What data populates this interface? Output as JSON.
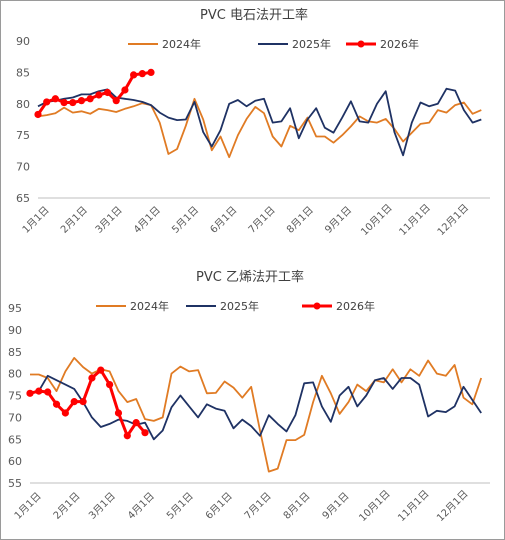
{
  "colors": {
    "y2024": "#e07b24",
    "y2025": "#1f3264",
    "y2026": "#ff0000",
    "axis": "#bfbfbf"
  },
  "chart_data": [
    {
      "type": "line",
      "title": "PVC 电石法开工率",
      "ylim": [
        65,
        90
      ],
      "yticks": [
        "65",
        "70",
        "75",
        "80",
        "85",
        "90"
      ],
      "xlim": [
        1,
        53
      ],
      "x_tick_labels": [
        "1月1日",
        "2月1日",
        "3月1日",
        "4月1日",
        "5月1日",
        "6月1日",
        "7月1日",
        "8月1日",
        "9月1日",
        "10月1日",
        "11月1日",
        "12月1日"
      ],
      "legend": [
        "2024年",
        "2025年",
        "2026年"
      ],
      "series": [
        {
          "name": "2024年",
          "x": [
            1,
            2,
            3,
            4,
            5,
            6,
            7,
            8,
            9,
            10,
            11,
            12,
            13,
            14,
            15,
            16,
            17,
            18,
            19,
            20,
            21,
            22,
            23,
            24,
            25,
            26,
            27,
            28,
            29,
            30,
            31,
            32,
            33,
            34,
            35,
            36,
            37,
            38,
            39,
            40,
            41,
            42,
            43,
            44,
            45,
            46,
            47,
            48,
            49,
            50,
            51,
            52
          ],
          "values": [
            78.0,
            78.2,
            78.5,
            79.4,
            78.6,
            78.8,
            78.4,
            79.2,
            79.0,
            78.7,
            79.2,
            79.6,
            80.1,
            79.8,
            77.0,
            72.0,
            72.8,
            76.5,
            80.8,
            77.5,
            72.6,
            74.8,
            71.5,
            75.0,
            77.6,
            79.5,
            78.5,
            74.8,
            73.2,
            76.5,
            75.8,
            77.8,
            74.8,
            74.8,
            73.8,
            75.0,
            76.4,
            78.0,
            77.2,
            77.0,
            77.6,
            76.0,
            74.0,
            75.4,
            76.8,
            77.0,
            79.0,
            78.6,
            79.8,
            80.2,
            78.4,
            79.0
          ]
        },
        {
          "name": "2025年",
          "x": [
            1,
            2,
            3,
            4,
            5,
            6,
            7,
            8,
            9,
            10,
            11,
            12,
            13,
            14,
            15,
            16,
            17,
            18,
            19,
            20,
            21,
            22,
            23,
            24,
            25,
            26,
            27,
            28,
            29,
            30,
            31,
            32,
            33,
            34,
            35,
            36,
            37,
            38,
            39,
            40,
            41,
            42,
            43,
            44,
            45,
            46,
            47,
            48,
            49,
            50,
            51,
            52
          ],
          "values": [
            79.6,
            80.3,
            80.5,
            80.8,
            81.0,
            81.5,
            81.5,
            82.0,
            82.3,
            81.0,
            80.8,
            80.6,
            80.3,
            79.8,
            78.6,
            77.8,
            77.4,
            77.5,
            80.3,
            75.5,
            73.2,
            75.8,
            80.0,
            80.6,
            79.6,
            80.5,
            80.8,
            77.0,
            77.2,
            79.3,
            74.5,
            77.5,
            79.3,
            76.2,
            75.4,
            77.8,
            80.4,
            77.2,
            77.0,
            80.0,
            82.0,
            75.5,
            71.8,
            77.0,
            80.2,
            79.6,
            80.0,
            82.4,
            82.1,
            79.0,
            77.0,
            77.5
          ]
        },
        {
          "name": "2026年",
          "x": [
            1,
            2,
            3,
            4,
            5,
            6,
            7,
            8,
            9,
            10,
            11,
            12,
            13,
            14
          ],
          "values": [
            78.3,
            80.3,
            80.8,
            80.2,
            80.2,
            80.5,
            80.8,
            81.4,
            81.8,
            80.5,
            82.2,
            84.6,
            84.8,
            85.0
          ]
        }
      ]
    },
    {
      "type": "line",
      "title": "PVC 乙烯法开工率",
      "ylim": [
        55,
        95
      ],
      "yticks": [
        "55",
        "60",
        "65",
        "70",
        "75",
        "80",
        "85",
        "90",
        "95"
      ],
      "xlim": [
        1,
        53
      ],
      "x_tick_labels": [
        "1月1日",
        "2月1日",
        "3月1日",
        "4月1日",
        "5月1日",
        "6月1日",
        "7月1日",
        "8月1日",
        "9月1日",
        "10月1日",
        "11月1日",
        "12月1日"
      ],
      "legend": [
        "2024年",
        "2025年",
        "2026年"
      ],
      "series": [
        {
          "name": "2024年",
          "x": [
            1,
            2,
            3,
            4,
            5,
            6,
            7,
            8,
            9,
            10,
            11,
            12,
            13,
            14,
            15,
            16,
            17,
            18,
            19,
            20,
            21,
            22,
            23,
            24,
            25,
            26,
            27,
            28,
            29,
            30,
            31,
            32,
            33,
            34,
            35,
            36,
            37,
            38,
            39,
            40,
            41,
            42,
            43,
            44,
            45,
            46,
            47,
            48,
            49,
            50,
            51,
            52
          ],
          "values": [
            79.8,
            79.8,
            79.0,
            76.0,
            80.5,
            83.6,
            81.5,
            80.0,
            81.0,
            80.5,
            76.0,
            73.5,
            74.2,
            69.6,
            69.2,
            70.0,
            80.0,
            81.6,
            80.5,
            80.8,
            75.5,
            75.6,
            78.2,
            76.8,
            74.5,
            77.0,
            67.0,
            57.6,
            58.3,
            64.8,
            64.8,
            66.0,
            73.5,
            79.5,
            75.5,
            70.8,
            73.5,
            77.5,
            76.0,
            78.5,
            78.0,
            81.0,
            78.0,
            81.0,
            79.5,
            83.0,
            80.0,
            79.5,
            82.0,
            74.5,
            73.0,
            79.0
          ]
        },
        {
          "name": "2025年",
          "x": [
            1,
            2,
            3,
            4,
            5,
            6,
            7,
            8,
            9,
            10,
            11,
            12,
            13,
            14,
            15,
            16,
            17,
            18,
            19,
            20,
            21,
            22,
            23,
            24,
            25,
            26,
            27,
            28,
            29,
            30,
            31,
            32,
            33,
            34,
            35,
            36,
            37,
            38,
            39,
            40,
            41,
            42,
            43,
            44,
            45,
            46,
            47,
            48,
            49,
            50,
            51,
            52
          ],
          "values": [
            75.5,
            76.0,
            79.5,
            78.5,
            77.5,
            76.5,
            73.5,
            70.0,
            67.8,
            68.5,
            69.5,
            69.2,
            68.3,
            68.8,
            65.0,
            67.0,
            72.3,
            75.0,
            72.5,
            70.0,
            73.0,
            72.0,
            71.5,
            67.5,
            69.5,
            68.0,
            65.8,
            70.5,
            68.5,
            66.8,
            70.5,
            77.8,
            78.0,
            72.5,
            69.0,
            75.0,
            77.0,
            72.5,
            75.0,
            78.5,
            79.0,
            76.5,
            79.0,
            79.0,
            77.5,
            70.2,
            71.5,
            71.2,
            72.5,
            77.0,
            74.0,
            71.0
          ]
        },
        {
          "name": "2026年",
          "x": [
            1,
            2,
            3,
            4,
            5,
            6,
            7,
            8,
            9,
            10,
            11,
            12,
            13,
            14
          ],
          "values": [
            75.5,
            76.0,
            75.8,
            73.0,
            71.0,
            73.6,
            73.6,
            79.0,
            80.8,
            77.5,
            71.0,
            65.8,
            68.8,
            66.5
          ]
        }
      ]
    }
  ]
}
